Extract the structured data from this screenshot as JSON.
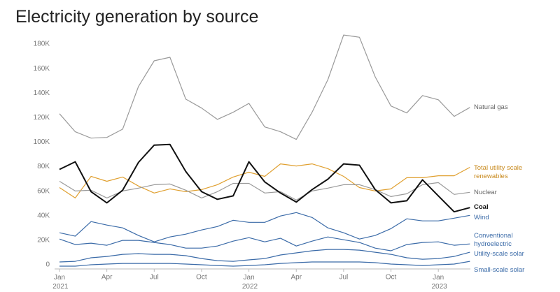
{
  "chart_data": {
    "type": "line",
    "title": "Electricity generation by source",
    "categories": [
      "Jan 2021",
      null,
      null,
      "Apr",
      null,
      null,
      "Jul",
      null,
      null,
      "Oct",
      null,
      null,
      "Jan 2022",
      null,
      null,
      "Apr",
      null,
      null,
      "Jul",
      null,
      null,
      "Oct",
      null,
      null,
      "Jan 2023",
      null,
      null
    ],
    "ylim": [
      0,
      190000
    ],
    "yticks": [
      0,
      {
        "value": 20000,
        "label": "20K"
      },
      {
        "value": 40000,
        "label": "40K"
      },
      {
        "value": 60000,
        "label": "60K"
      },
      {
        "value": 80000,
        "label": "80K"
      },
      {
        "value": 100000,
        "label": "100K"
      },
      {
        "value": 120000,
        "label": "120K"
      },
      {
        "value": 140000,
        "label": "140K"
      },
      {
        "value": 160000,
        "label": "160K"
      },
      {
        "value": 180000,
        "label": "180K"
      }
    ],
    "grid": false,
    "series": [
      {
        "name": "Natural gas",
        "color": "#9a9a9a",
        "values": [
          126600,
          111900,
          106700,
          107300,
          114000,
          148800,
          169800,
          172600,
          138500,
          131200,
          122000,
          127800,
          135000,
          115800,
          111900,
          105600,
          127800,
          154400,
          190800,
          189000,
          156700,
          132900,
          127200,
          141400,
          138000,
          124400,
          131700
        ]
      },
      {
        "name": "Total utility scale renewables",
        "color": "#e0a030",
        "values": [
          66400,
          57900,
          75500,
          71500,
          75000,
          67600,
          61900,
          65300,
          63000,
          64700,
          68700,
          75000,
          78900,
          75500,
          85700,
          84000,
          85700,
          81800,
          75500,
          66400,
          63600,
          65300,
          74400,
          74400,
          76000,
          76000,
          82900
        ]
      },
      {
        "name": "Nuclear",
        "color": "#9a9a9a",
        "values": [
          71500,
          63600,
          64200,
          57900,
          63600,
          65900,
          68700,
          69300,
          64200,
          57900,
          63000,
          69800,
          69800,
          61900,
          63000,
          56200,
          63600,
          65900,
          68700,
          68700,
          64700,
          59000,
          61300,
          68700,
          70400,
          60800,
          62500
        ]
      },
      {
        "name": "Coal",
        "color": "#111111",
        "values": [
          81200,
          87400,
          63000,
          53900,
          64200,
          86900,
          101000,
          101600,
          79500,
          63000,
          56800,
          59600,
          87400,
          71000,
          61900,
          54500,
          64700,
          73200,
          85700,
          84600,
          64700,
          53900,
          55600,
          72700,
          59600,
          46600,
          50000
        ]
      },
      {
        "name": "Wind",
        "color": "#3b6ba8",
        "values": [
          29500,
          26700,
          38600,
          35800,
          33500,
          27300,
          22100,
          26100,
          28400,
          31800,
          34600,
          39700,
          38000,
          38000,
          43200,
          46000,
          42000,
          33500,
          29500,
          24400,
          27300,
          32900,
          40900,
          39200,
          39200,
          41400,
          43700
        ]
      },
      {
        "name": "Conventional hydroelectric",
        "color": "#3b6ba8",
        "values": [
          24400,
          19900,
          21000,
          19300,
          23300,
          23300,
          21600,
          19900,
          17000,
          17000,
          18700,
          22700,
          25500,
          22100,
          25000,
          18700,
          22700,
          26100,
          23800,
          21600,
          17000,
          14800,
          19900,
          21600,
          22100,
          19300,
          20400
        ]
      },
      {
        "name": "Utility-scale solar",
        "color": "#3b6ba8",
        "values": [
          5700,
          6200,
          9100,
          10200,
          11900,
          12500,
          11900,
          11900,
          10800,
          8500,
          6800,
          6200,
          7400,
          8500,
          11400,
          13100,
          14800,
          15900,
          15900,
          15300,
          13600,
          11900,
          9100,
          7900,
          8500,
          10200,
          13600
        ]
      },
      {
        "name": "Small-scale solar",
        "color": "#3b6ba8",
        "values": [
          2300,
          2300,
          3400,
          4000,
          4500,
          4500,
          4500,
          4500,
          4000,
          3400,
          2800,
          2300,
          2800,
          3400,
          4500,
          5100,
          5700,
          5700,
          5700,
          5700,
          5100,
          4000,
          3400,
          2800,
          3400,
          4000,
          6200
        ]
      }
    ]
  }
}
